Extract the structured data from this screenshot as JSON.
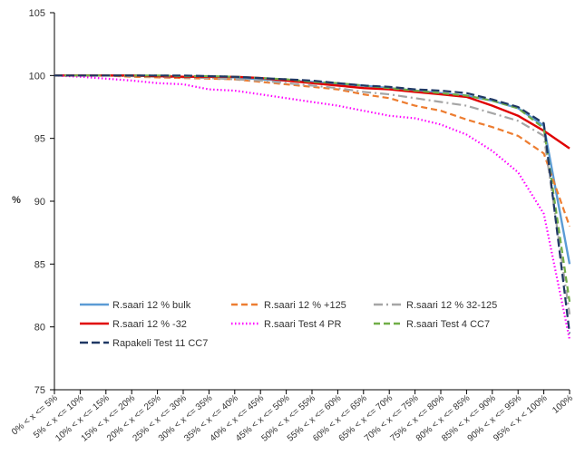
{
  "chart_data": {
    "type": "line",
    "title": "",
    "xlabel": "",
    "ylabel": "%",
    "ylim": [
      75,
      105
    ],
    "yticks": [
      75,
      80,
      85,
      90,
      95,
      100,
      105
    ],
    "grid": false,
    "legend_position": "bottom-left (inside plot)",
    "categories": [
      "0% < x <= 5%",
      "5% < x <= 10%",
      "10% < x <= 15%",
      "15% < x <= 20%",
      "20% < x <= 25%",
      "25% < x <= 30%",
      "30% < x <= 35%",
      "35% < x <= 40%",
      "40% < x <= 45%",
      "45% < x <= 50%",
      "50% < x <= 55%",
      "55% < x <= 60%",
      "60% < x <= 65%",
      "65% < x <= 70%",
      "70% < x <= 75%",
      "75% < x <= 80%",
      "80% < x <= 85%",
      "85% < x <= 90%",
      "90% < x <= 95%",
      "95% < x < 100%",
      "100%"
    ],
    "series": [
      {
        "name": "R.saari 12 % bulk",
        "color": "#5b9bd5",
        "dash": "solid",
        "values": [
          100,
          100,
          100,
          100,
          99.95,
          99.9,
          99.9,
          99.85,
          99.7,
          99.6,
          99.5,
          99.35,
          99.2,
          99.0,
          98.8,
          98.6,
          98.4,
          98.0,
          97.4,
          96.0,
          85.0
        ]
      },
      {
        "name": "R.saari 12 % +125",
        "color": "#ed7d31",
        "dash": "dash",
        "values": [
          100,
          100,
          100,
          99.9,
          99.85,
          99.8,
          99.75,
          99.7,
          99.5,
          99.3,
          99.1,
          98.9,
          98.5,
          98.2,
          97.6,
          97.2,
          96.5,
          95.9,
          95.2,
          93.8,
          88.0
        ]
      },
      {
        "name": "R.saari 12 % 32-125",
        "color": "#a5a5a5",
        "dash": "dashdot",
        "values": [
          100,
          100,
          100,
          99.95,
          99.9,
          99.85,
          99.8,
          99.7,
          99.6,
          99.4,
          99.2,
          99.0,
          98.7,
          98.5,
          98.2,
          97.9,
          97.6,
          97.0,
          96.4,
          95.2,
          81.0
        ]
      },
      {
        "name": "R.saari 12 % -32",
        "color": "#e00000",
        "dash": "solid",
        "values": [
          100,
          100,
          100,
          100,
          99.95,
          99.9,
          99.9,
          99.9,
          99.8,
          99.6,
          99.4,
          99.2,
          99.0,
          98.9,
          98.7,
          98.5,
          98.3,
          97.6,
          96.8,
          95.6,
          94.2
        ]
      },
      {
        "name": "R.saari Test 4 PR",
        "color": "#ff00ff",
        "dash": "dot",
        "values": [
          100,
          99.9,
          99.75,
          99.6,
          99.4,
          99.3,
          98.9,
          98.8,
          98.5,
          98.2,
          97.9,
          97.6,
          97.2,
          96.8,
          96.6,
          96.1,
          95.3,
          94.0,
          92.3,
          89.0,
          79.0
        ]
      },
      {
        "name": "R.saari Test 4 CC7",
        "color": "#70ad47",
        "dash": "dash",
        "values": [
          100,
          100,
          100,
          100,
          100,
          99.95,
          99.95,
          99.9,
          99.8,
          99.7,
          99.5,
          99.4,
          99.2,
          99.0,
          98.8,
          98.6,
          98.4,
          98.0,
          97.4,
          95.8,
          82.0
        ]
      },
      {
        "name": "Rapakeli Test 11 CC7",
        "color": "#1f3864",
        "dash": "longdash",
        "values": [
          100,
          100,
          100,
          100,
          100,
          100,
          99.95,
          99.9,
          99.8,
          99.7,
          99.6,
          99.4,
          99.2,
          99.1,
          98.9,
          98.8,
          98.6,
          98.1,
          97.5,
          96.2,
          79.5
        ]
      }
    ]
  }
}
